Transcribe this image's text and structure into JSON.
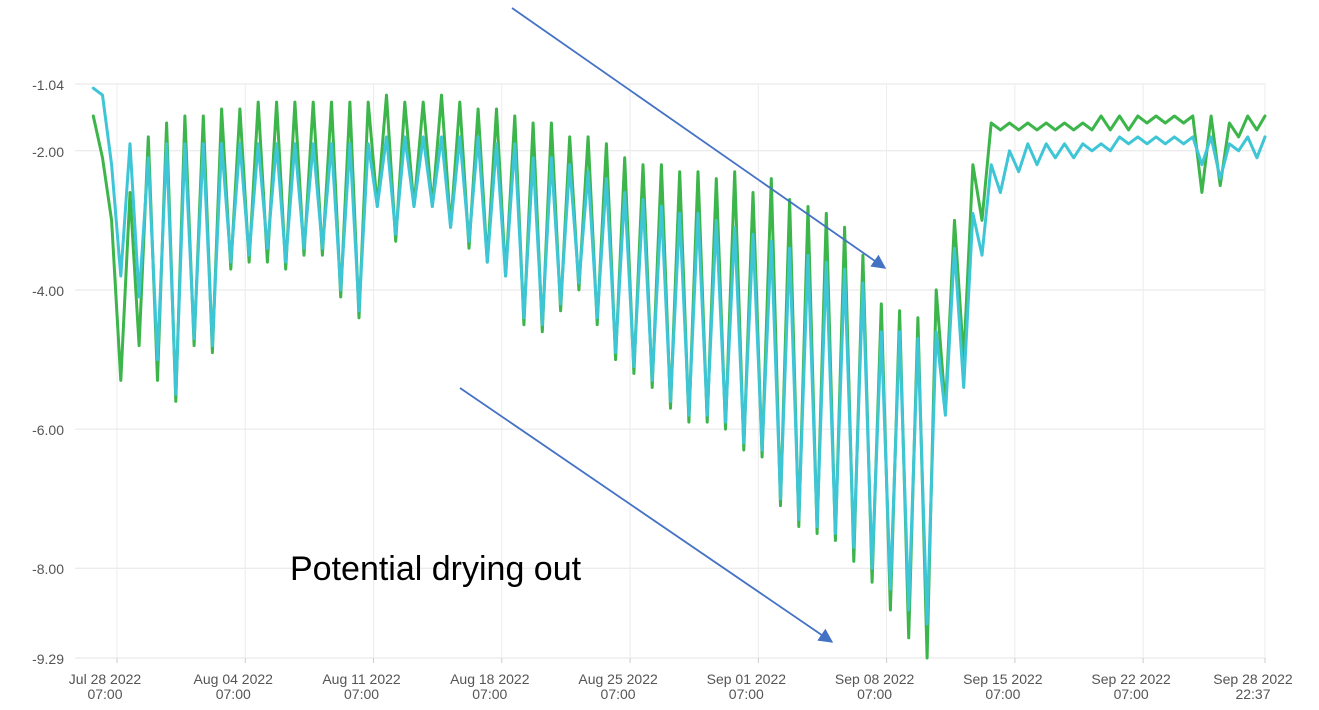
{
  "chart_data": {
    "type": "line",
    "title": "",
    "xlabel": "",
    "ylabel": "",
    "ylim": [
      -9.29,
      -1.04
    ],
    "y_ticks": [
      "-1.04",
      "-2.00",
      "-4.00",
      "-6.00",
      "-8.00",
      "-9.29"
    ],
    "x_ticks": [
      {
        "date": "Jul 28 2022",
        "time": "07:00"
      },
      {
        "date": "Aug 04 2022",
        "time": "07:00"
      },
      {
        "date": "Aug 11 2022",
        "time": "07:00"
      },
      {
        "date": "Aug 18 2022",
        "time": "07:00"
      },
      {
        "date": "Aug 25 2022",
        "time": "07:00"
      },
      {
        "date": "Sep 01 2022",
        "time": "07:00"
      },
      {
        "date": "Sep 08 2022",
        "time": "07:00"
      },
      {
        "date": "Sep 15 2022",
        "time": "07:00"
      },
      {
        "date": "Sep 22 2022",
        "time": "07:00"
      },
      {
        "date": "Sep 28 2022",
        "time": "22:37"
      }
    ],
    "grid": true,
    "legend": "none",
    "series": [
      {
        "color": "#3cb54a",
        "x": [
          "2022-07-27 00:00",
          "2022-07-27 12:00",
          "2022-07-28 00:00",
          "2022-07-28 12:00",
          "2022-07-29 00:00",
          "2022-07-29 12:00",
          "2022-07-30 00:00",
          "2022-07-30 12:00",
          "2022-07-31 00:00",
          "2022-07-31 12:00",
          "2022-08-01 00:00",
          "2022-08-01 12:00",
          "2022-08-02 00:00",
          "2022-08-02 12:00",
          "2022-08-03 00:00",
          "2022-08-03 12:00",
          "2022-08-04 00:00",
          "2022-08-04 12:00",
          "2022-08-05 00:00",
          "2022-08-05 12:00",
          "2022-08-06 00:00",
          "2022-08-06 12:00",
          "2022-08-07 00:00",
          "2022-08-07 12:00",
          "2022-08-08 00:00",
          "2022-08-08 12:00",
          "2022-08-09 00:00",
          "2022-08-09 12:00",
          "2022-08-10 00:00",
          "2022-08-10 12:00",
          "2022-08-11 00:00",
          "2022-08-11 12:00",
          "2022-08-12 00:00",
          "2022-08-12 12:00",
          "2022-08-13 00:00",
          "2022-08-13 12:00",
          "2022-08-14 00:00",
          "2022-08-14 12:00",
          "2022-08-15 00:00",
          "2022-08-15 12:00",
          "2022-08-16 00:00",
          "2022-08-16 12:00",
          "2022-08-17 00:00",
          "2022-08-17 12:00",
          "2022-08-18 00:00",
          "2022-08-18 12:00",
          "2022-08-19 00:00",
          "2022-08-19 12:00",
          "2022-08-20 00:00",
          "2022-08-20 12:00",
          "2022-08-21 00:00",
          "2022-08-21 12:00",
          "2022-08-22 00:00",
          "2022-08-22 12:00",
          "2022-08-23 00:00",
          "2022-08-23 12:00",
          "2022-08-24 00:00",
          "2022-08-24 12:00",
          "2022-08-25 00:00",
          "2022-08-25 12:00",
          "2022-08-26 00:00",
          "2022-08-26 12:00",
          "2022-08-27 00:00",
          "2022-08-27 12:00",
          "2022-08-28 00:00",
          "2022-08-28 12:00",
          "2022-08-29 00:00",
          "2022-08-29 12:00",
          "2022-08-30 00:00",
          "2022-08-30 12:00",
          "2022-08-31 00:00",
          "2022-08-31 12:00",
          "2022-09-01 00:00",
          "2022-09-01 12:00",
          "2022-09-02 00:00",
          "2022-09-02 12:00",
          "2022-09-03 00:00",
          "2022-09-03 12:00",
          "2022-09-04 00:00",
          "2022-09-04 12:00",
          "2022-09-05 00:00",
          "2022-09-05 12:00",
          "2022-09-06 00:00",
          "2022-09-06 12:00",
          "2022-09-07 00:00",
          "2022-09-07 12:00",
          "2022-09-08 00:00",
          "2022-09-08 12:00",
          "2022-09-09 00:00",
          "2022-09-09 12:00",
          "2022-09-10 00:00",
          "2022-09-10 12:00",
          "2022-09-11 00:00",
          "2022-09-11 12:00",
          "2022-09-12 00:00",
          "2022-09-12 12:00",
          "2022-09-13 00:00",
          "2022-09-13 12:00",
          "2022-09-14 00:00",
          "2022-09-14 12:00",
          "2022-09-15 00:00",
          "2022-09-15 12:00",
          "2022-09-16 00:00",
          "2022-09-16 12:00",
          "2022-09-17 00:00",
          "2022-09-17 12:00",
          "2022-09-18 00:00",
          "2022-09-18 12:00",
          "2022-09-19 00:00",
          "2022-09-19 12:00",
          "2022-09-20 00:00",
          "2022-09-20 12:00",
          "2022-09-21 00:00",
          "2022-09-21 12:00",
          "2022-09-22 00:00",
          "2022-09-22 12:00",
          "2022-09-23 00:00",
          "2022-09-23 12:00",
          "2022-09-24 00:00",
          "2022-09-24 12:00",
          "2022-09-25 00:00",
          "2022-09-25 12:00",
          "2022-09-26 00:00",
          "2022-09-26 12:00",
          "2022-09-27 00:00",
          "2022-09-27 12:00",
          "2022-09-28 00:00",
          "2022-09-28 12:00",
          "2022-09-28 22:37"
        ],
        "y": [
          -1.5,
          -2.1,
          -3.0,
          -5.3,
          -2.6,
          -4.8,
          -1.8,
          -5.3,
          -1.6,
          -5.6,
          -1.5,
          -4.8,
          -1.5,
          -4.9,
          -1.4,
          -3.7,
          -1.4,
          -3.6,
          -1.3,
          -3.6,
          -1.3,
          -3.7,
          -1.3,
          -3.5,
          -1.3,
          -3.5,
          -1.3,
          -4.1,
          -1.3,
          -4.4,
          -1.3,
          -2.8,
          -1.2,
          -3.3,
          -1.3,
          -2.8,
          -1.3,
          -2.8,
          -1.2,
          -3.1,
          -1.3,
          -3.4,
          -1.4,
          -3.6,
          -1.4,
          -3.8,
          -1.5,
          -4.5,
          -1.6,
          -4.6,
          -1.6,
          -4.3,
          -1.8,
          -4.0,
          -1.8,
          -4.5,
          -1.9,
          -5.0,
          -2.1,
          -5.2,
          -2.2,
          -5.4,
          -2.2,
          -5.7,
          -2.3,
          -5.9,
          -2.3,
          -5.9,
          -2.4,
          -6.0,
          -2.3,
          -6.3,
          -2.6,
          -6.4,
          -2.4,
          -7.1,
          -2.7,
          -7.4,
          -2.8,
          -7.5,
          -2.9,
          -7.6,
          -3.1,
          -7.9,
          -3.5,
          -8.2,
          -4.2,
          -8.6,
          -4.3,
          -9.0,
          -4.4,
          -9.29,
          -4.0,
          -5.7,
          -3.0,
          -5.0,
          -2.2,
          -3.0,
          -1.6,
          -1.7,
          -1.6,
          -1.7,
          -1.6,
          -1.7,
          -1.6,
          -1.7,
          -1.6,
          -1.7,
          -1.6,
          -1.7,
          -1.5,
          -1.7,
          -1.5,
          -1.7,
          -1.5,
          -1.6,
          -1.5,
          -1.6,
          -1.5,
          -1.6,
          -1.5,
          -2.6,
          -1.5,
          -2.5,
          -1.6,
          -1.8,
          -1.5,
          -1.7,
          -1.5
        ]
      },
      {
        "color": "#3ec5d6",
        "x": [
          "2022-07-27 00:00",
          "2022-07-27 12:00",
          "2022-07-28 00:00",
          "2022-07-28 12:00",
          "2022-07-29 00:00",
          "2022-07-29 12:00",
          "2022-07-30 00:00",
          "2022-07-30 12:00",
          "2022-07-31 00:00",
          "2022-07-31 12:00",
          "2022-08-01 00:00",
          "2022-08-01 12:00",
          "2022-08-02 00:00",
          "2022-08-02 12:00",
          "2022-08-03 00:00",
          "2022-08-03 12:00",
          "2022-08-04 00:00",
          "2022-08-04 12:00",
          "2022-08-05 00:00",
          "2022-08-05 12:00",
          "2022-08-06 00:00",
          "2022-08-06 12:00",
          "2022-08-07 00:00",
          "2022-08-07 12:00",
          "2022-08-08 00:00",
          "2022-08-08 12:00",
          "2022-08-09 00:00",
          "2022-08-09 12:00",
          "2022-08-10 00:00",
          "2022-08-10 12:00",
          "2022-08-11 00:00",
          "2022-08-11 12:00",
          "2022-08-12 00:00",
          "2022-08-12 12:00",
          "2022-08-13 00:00",
          "2022-08-13 12:00",
          "2022-08-14 00:00",
          "2022-08-14 12:00",
          "2022-08-15 00:00",
          "2022-08-15 12:00",
          "2022-08-16 00:00",
          "2022-08-16 12:00",
          "2022-08-17 00:00",
          "2022-08-17 12:00",
          "2022-08-18 00:00",
          "2022-08-18 12:00",
          "2022-08-19 00:00",
          "2022-08-19 12:00",
          "2022-08-20 00:00",
          "2022-08-20 12:00",
          "2022-08-21 00:00",
          "2022-08-21 12:00",
          "2022-08-22 00:00",
          "2022-08-22 12:00",
          "2022-08-23 00:00",
          "2022-08-23 12:00",
          "2022-08-24 00:00",
          "2022-08-24 12:00",
          "2022-08-25 00:00",
          "2022-08-25 12:00",
          "2022-08-26 00:00",
          "2022-08-26 12:00",
          "2022-08-27 00:00",
          "2022-08-27 12:00",
          "2022-08-28 00:00",
          "2022-08-28 12:00",
          "2022-08-29 00:00",
          "2022-08-29 12:00",
          "2022-08-30 00:00",
          "2022-08-30 12:00",
          "2022-08-31 00:00",
          "2022-08-31 12:00",
          "2022-09-01 00:00",
          "2022-09-01 12:00",
          "2022-09-02 00:00",
          "2022-09-02 12:00",
          "2022-09-03 00:00",
          "2022-09-03 12:00",
          "2022-09-04 00:00",
          "2022-09-04 12:00",
          "2022-09-05 00:00",
          "2022-09-05 12:00",
          "2022-09-06 00:00",
          "2022-09-06 12:00",
          "2022-09-07 00:00",
          "2022-09-07 12:00",
          "2022-09-08 00:00",
          "2022-09-08 12:00",
          "2022-09-09 00:00",
          "2022-09-09 12:00",
          "2022-09-10 00:00",
          "2022-09-10 12:00",
          "2022-09-11 00:00",
          "2022-09-11 12:00",
          "2022-09-12 00:00",
          "2022-09-12 12:00",
          "2022-09-13 00:00",
          "2022-09-13 12:00",
          "2022-09-14 00:00",
          "2022-09-14 12:00",
          "2022-09-15 00:00",
          "2022-09-15 12:00",
          "2022-09-16 00:00",
          "2022-09-16 12:00",
          "2022-09-17 00:00",
          "2022-09-17 12:00",
          "2022-09-18 00:00",
          "2022-09-18 12:00",
          "2022-09-19 00:00",
          "2022-09-19 12:00",
          "2022-09-20 00:00",
          "2022-09-20 12:00",
          "2022-09-21 00:00",
          "2022-09-21 12:00",
          "2022-09-22 00:00",
          "2022-09-22 12:00",
          "2022-09-23 00:00",
          "2022-09-23 12:00",
          "2022-09-24 00:00",
          "2022-09-24 12:00",
          "2022-09-25 00:00",
          "2022-09-25 12:00",
          "2022-09-26 00:00",
          "2022-09-26 12:00",
          "2022-09-27 00:00",
          "2022-09-27 12:00",
          "2022-09-28 00:00",
          "2022-09-28 12:00",
          "2022-09-28 22:37"
        ],
        "y": [
          -1.1,
          -1.2,
          -2.2,
          -3.8,
          -1.9,
          -4.1,
          -2.1,
          -5.0,
          -1.9,
          -5.5,
          -1.9,
          -4.7,
          -1.9,
          -4.8,
          -1.9,
          -3.6,
          -1.9,
          -3.5,
          -1.9,
          -3.4,
          -1.9,
          -3.6,
          -1.9,
          -3.4,
          -1.9,
          -3.4,
          -1.9,
          -4.0,
          -1.9,
          -4.3,
          -1.9,
          -2.8,
          -1.8,
          -3.2,
          -1.8,
          -2.8,
          -1.8,
          -2.8,
          -1.8,
          -3.1,
          -1.8,
          -3.3,
          -1.8,
          -3.6,
          -1.9,
          -3.8,
          -1.9,
          -4.4,
          -2.1,
          -4.5,
          -2.1,
          -4.2,
          -2.2,
          -3.9,
          -2.3,
          -4.4,
          -2.4,
          -4.9,
          -2.6,
          -5.1,
          -2.7,
          -5.3,
          -2.8,
          -5.6,
          -2.9,
          -5.8,
          -2.9,
          -5.8,
          -3.0,
          -5.9,
          -3.1,
          -6.2,
          -3.2,
          -6.3,
          -3.3,
          -7.0,
          -3.4,
          -7.3,
          -3.5,
          -7.4,
          -3.6,
          -7.5,
          -3.7,
          -7.7,
          -3.9,
          -8.0,
          -4.6,
          -8.3,
          -4.6,
          -8.6,
          -4.7,
          -8.8,
          -4.6,
          -5.8,
          -3.4,
          -5.4,
          -2.9,
          -3.5,
          -2.2,
          -2.6,
          -2.0,
          -2.3,
          -1.9,
          -2.2,
          -1.9,
          -2.1,
          -1.9,
          -2.1,
          -1.9,
          -2.0,
          -1.9,
          -2.0,
          -1.8,
          -1.9,
          -1.8,
          -1.9,
          -1.8,
          -1.9,
          -1.8,
          -1.9,
          -1.8,
          -2.2,
          -1.8,
          -2.4,
          -1.9,
          -2.0,
          -1.8,
          -2.1,
          -1.8
        ]
      }
    ],
    "annotations": [
      {
        "kind": "text",
        "text": "Potential drying out"
      },
      {
        "kind": "arrow",
        "points_to": "trough lows around Sep 07 2022"
      },
      {
        "kind": "arrow",
        "points_to": "trough lows around Sep 08 2022 (upper arrow)"
      }
    ]
  }
}
